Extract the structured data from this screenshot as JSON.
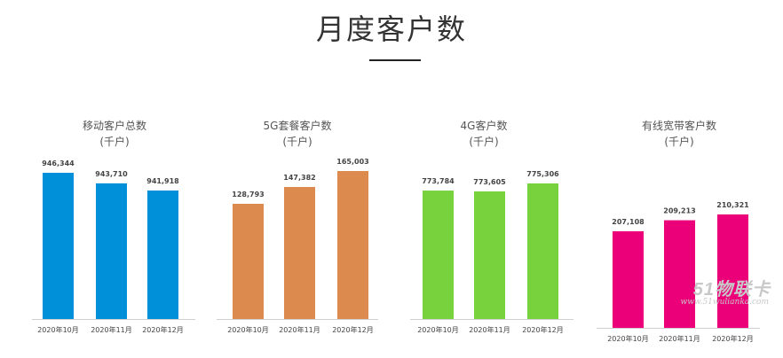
{
  "page": {
    "title": "月度客户数"
  },
  "chart_data": [
    {
      "type": "bar",
      "title": "移动客户总数",
      "unit": "(千户)",
      "color": "#0090DA",
      "categories": [
        "2020年10月",
        "2020年11月",
        "2020年12月"
      ],
      "values": [
        946344,
        943710,
        941918
      ],
      "value_labels": [
        "946,344",
        "943,710",
        "941,918"
      ]
    },
    {
      "type": "bar",
      "title": "5G套餐客户数",
      "unit": "(千户)",
      "color": "#DD8A4F",
      "categories": [
        "2020年10月",
        "2020年11月",
        "2020年12月"
      ],
      "values": [
        128793,
        147382,
        165003
      ],
      "value_labels": [
        "128,793",
        "147,382",
        "165,003"
      ]
    },
    {
      "type": "bar",
      "title": "4G客户数",
      "unit": "(千户)",
      "color": "#77D23D",
      "categories": [
        "2020年10月",
        "2020年11月",
        "2020年12月"
      ],
      "values": [
        773784,
        773605,
        775306
      ],
      "value_labels": [
        "773,784",
        "773,605",
        "775,306"
      ]
    },
    {
      "type": "bar",
      "title": "有线宽带客户数",
      "unit": "(千户)",
      "color": "#EC0079",
      "categories": [
        "2020年10月",
        "2020年11月",
        "2020年12月"
      ],
      "values": [
        207108,
        209213,
        210321
      ],
      "value_labels": [
        "207,108",
        "209,213",
        "210,321"
      ]
    }
  ],
  "watermark": {
    "logo": "51物联卡",
    "subtitle": "www.51wulianka.com"
  }
}
